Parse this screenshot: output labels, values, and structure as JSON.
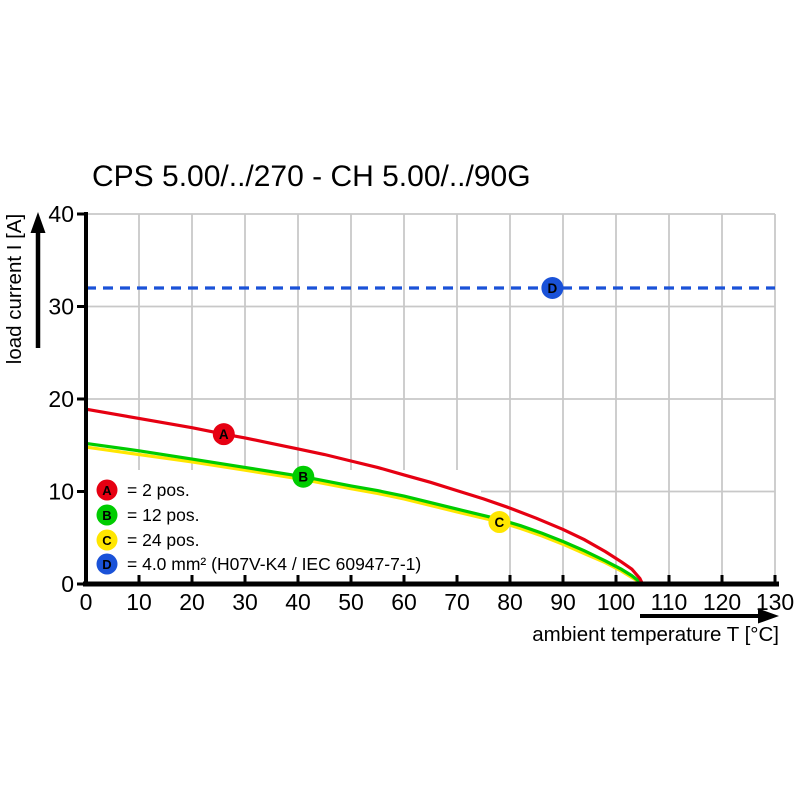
{
  "chart_data": {
    "type": "line",
    "title": "CPS 5.00/../270 - CH 5.00/../90G",
    "xlabel": "ambient temperature T [°C]",
    "ylabel": "load current I [A]",
    "xlim": [
      0,
      130
    ],
    "ylim": [
      0,
      40
    ],
    "x_ticks": [
      0,
      10,
      20,
      30,
      40,
      50,
      60,
      70,
      80,
      90,
      100,
      110,
      120,
      130
    ],
    "y_ticks": [
      0,
      10,
      20,
      30,
      40
    ],
    "grid": true,
    "grid_color": "#c8c8c8",
    "legend_position": "lower-left",
    "series": [
      {
        "id": "A",
        "label": "= 2 pos.",
        "color": "#e60012",
        "style": "solid",
        "marker_at": {
          "x": 26,
          "y": 16.2
        },
        "points": [
          [
            0,
            18.9
          ],
          [
            5,
            18.4
          ],
          [
            10,
            17.9
          ],
          [
            15,
            17.4
          ],
          [
            20,
            16.9
          ],
          [
            26,
            16.2
          ],
          [
            30,
            15.8
          ],
          [
            35,
            15.2
          ],
          [
            40,
            14.6
          ],
          [
            45,
            14.0
          ],
          [
            50,
            13.3
          ],
          [
            55,
            12.6
          ],
          [
            60,
            11.8
          ],
          [
            65,
            11.0
          ],
          [
            70,
            10.1
          ],
          [
            75,
            9.2
          ],
          [
            80,
            8.2
          ],
          [
            85,
            7.1
          ],
          [
            90,
            5.9
          ],
          [
            94,
            4.8
          ],
          [
            98,
            3.5
          ],
          [
            101,
            2.4
          ],
          [
            103,
            1.6
          ],
          [
            104.5,
            0.6
          ],
          [
            105,
            0
          ]
        ]
      },
      {
        "id": "B",
        "label": "= 12 pos.",
        "color": "#00cc00",
        "style": "solid",
        "marker_at": {
          "x": 41,
          "y": 11.6
        },
        "points": [
          [
            0,
            15.2
          ],
          [
            10,
            14.4
          ],
          [
            20,
            13.5
          ],
          [
            30,
            12.6
          ],
          [
            41,
            11.6
          ],
          [
            50,
            10.6
          ],
          [
            55,
            10.1
          ],
          [
            60,
            9.5
          ],
          [
            65,
            8.8
          ],
          [
            70,
            8.1
          ],
          [
            78,
            7.0
          ],
          [
            82,
            6.3
          ],
          [
            86,
            5.5
          ],
          [
            90,
            4.6
          ],
          [
            94,
            3.6
          ],
          [
            98,
            2.5
          ],
          [
            101,
            1.6
          ],
          [
            103,
            0.9
          ],
          [
            105,
            0
          ]
        ]
      },
      {
        "id": "C",
        "label": "= 24 pos.",
        "color": "#ffe600",
        "style": "solid",
        "marker_at": {
          "x": 78,
          "y": 6.7
        },
        "points": [
          [
            0,
            14.8
          ],
          [
            10,
            14.0
          ],
          [
            20,
            13.2
          ],
          [
            30,
            12.3
          ],
          [
            41,
            11.3
          ],
          [
            50,
            10.3
          ],
          [
            55,
            9.8
          ],
          [
            60,
            9.2
          ],
          [
            65,
            8.5
          ],
          [
            70,
            7.8
          ],
          [
            78,
            6.7
          ],
          [
            82,
            6.0
          ],
          [
            86,
            5.2
          ],
          [
            90,
            4.3
          ],
          [
            94,
            3.3
          ],
          [
            98,
            2.3
          ],
          [
            101,
            1.4
          ],
          [
            103,
            0.7
          ],
          [
            105,
            0
          ]
        ]
      },
      {
        "id": "D",
        "label": "= 4.0 mm² (H07V-K4 / IEC 60947-7-1)",
        "color": "#1a52d8",
        "style": "dashed",
        "constant_value": 32,
        "marker_at": {
          "x": 88,
          "y": 32
        },
        "points": [
          [
            0,
            32
          ],
          [
            130,
            32
          ]
        ]
      }
    ]
  }
}
